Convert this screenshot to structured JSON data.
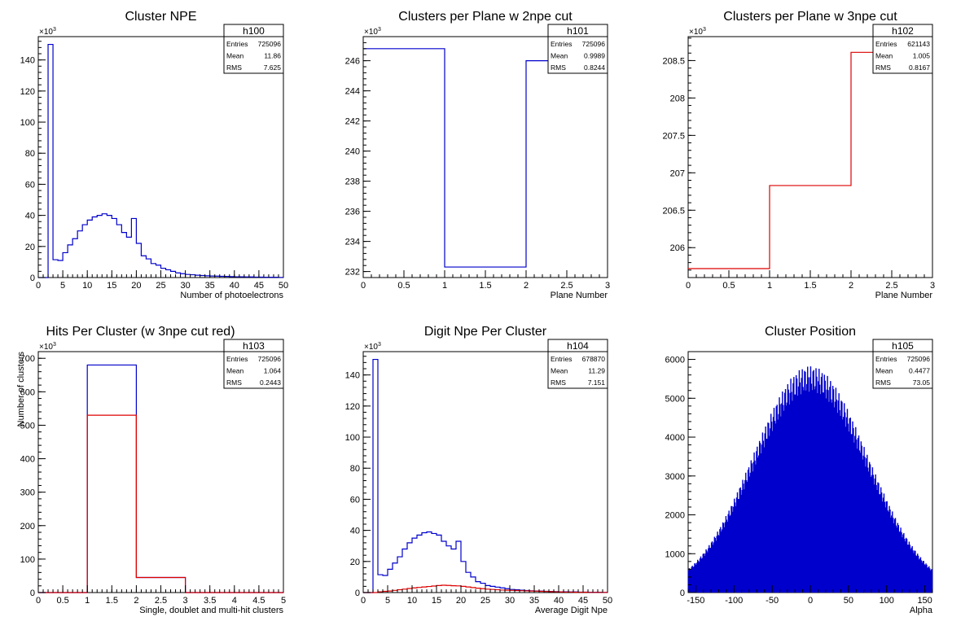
{
  "chart_data": [
    {
      "id": "h100",
      "type": "histogram",
      "title": "Cluster NPE",
      "xlabel": "Number of photoelectrons",
      "ylabel": "",
      "exponent": "10",
      "exponent_power": "3",
      "xlim": [
        0,
        50
      ],
      "ylim": [
        0,
        155
      ],
      "xticks": [
        0,
        5,
        10,
        15,
        20,
        25,
        30,
        35,
        40,
        45,
        50
      ],
      "yticks": [
        0,
        20,
        40,
        60,
        80,
        100,
        120,
        140
      ],
      "stats": {
        "name": "h100",
        "entries_label": "Entries",
        "entries": "725096",
        "mean_label": "Mean",
        "mean": "11.86",
        "rms_label": "RMS",
        "rms": "7.625"
      },
      "series": [
        {
          "color": "#0000cc",
          "bin_width": 1,
          "x_start": 0,
          "values": [
            0,
            0,
            150,
            11.5,
            11,
            16,
            21,
            25,
            30,
            34,
            37,
            39,
            40,
            41,
            40,
            38,
            34,
            29,
            26,
            38,
            22,
            14,
            12,
            9,
            8,
            6,
            5,
            4,
            3,
            2.5,
            2,
            1.8,
            1.5,
            1.3,
            1.1,
            1,
            0.9,
            0.8,
            0.7,
            0.6,
            0.5,
            0.5,
            0.4,
            0.4,
            0.3,
            0.3,
            0.2,
            0.2,
            0.2,
            0.1
          ]
        }
      ]
    },
    {
      "id": "h101",
      "type": "histogram",
      "title": "Clusters per Plane w 2npe cut",
      "xlabel": "Plane Number",
      "ylabel": "",
      "exponent": "10",
      "exponent_power": "3",
      "xlim": [
        0,
        3
      ],
      "ylim": [
        231.6,
        247.6
      ],
      "xticks": [
        0,
        0.5,
        1,
        1.5,
        2,
        2.5,
        3
      ],
      "yticks": [
        232,
        234,
        236,
        238,
        240,
        242,
        244,
        246
      ],
      "stats": {
        "name": "h101",
        "entries_label": "Entries",
        "entries": "725096",
        "mean_label": "Mean",
        "mean": "0.9989",
        "rms_label": "RMS",
        "rms": "0.8244"
      },
      "series": [
        {
          "color": "#0000cc",
          "bin_width": 1,
          "x_start": 0,
          "values": [
            246.8,
            232.3,
            246.0
          ]
        }
      ]
    },
    {
      "id": "h102",
      "type": "histogram",
      "title": "Clusters per Plane w 3npe cut",
      "xlabel": "Plane Number",
      "ylabel": "",
      "exponent": "10",
      "exponent_power": "3",
      "xlim": [
        0,
        3
      ],
      "ylim": [
        205.6,
        208.82
      ],
      "xticks": [
        0,
        0.5,
        1,
        1.5,
        2,
        2.5,
        3
      ],
      "yticks": [
        206,
        206.5,
        207,
        207.5,
        208,
        208.5
      ],
      "stats": {
        "name": "h102",
        "entries_label": "Entries",
        "entries": "621143",
        "mean_label": "Mean",
        "mean": "1.005",
        "rms_label": "RMS",
        "rms": "0.8167"
      },
      "series": [
        {
          "color": "#dd0000",
          "bin_width": 1,
          "x_start": 0,
          "values": [
            205.72,
            206.83,
            208.61
          ]
        }
      ]
    },
    {
      "id": "h103",
      "type": "histogram",
      "title": "Hits Per Cluster (w 3npe cut red)",
      "xlabel": "Single, doublet and multi-hit clusters",
      "ylabel": "Number of clusters",
      "exponent": "10",
      "exponent_power": "3",
      "xlim": [
        0,
        5
      ],
      "ylim": [
        0,
        720
      ],
      "xticks": [
        0,
        0.5,
        1,
        1.5,
        2,
        2.5,
        3,
        3.5,
        4,
        4.5,
        5
      ],
      "yticks": [
        0,
        100,
        200,
        300,
        400,
        500,
        600,
        700
      ],
      "stats": {
        "name": "h103",
        "entries_label": "Entries",
        "entries": "725096",
        "mean_label": "Mean",
        "mean": "1.064",
        "rms_label": "RMS",
        "rms": "0.2443"
      },
      "series": [
        {
          "color": "#0000cc",
          "bin_width": 1,
          "x_start": 0,
          "values": [
            0,
            680,
            45,
            0,
            0
          ]
        },
        {
          "color": "#dd0000",
          "bin_width": 1,
          "x_start": 0,
          "values": [
            0,
            530,
            45,
            0,
            0
          ]
        }
      ]
    },
    {
      "id": "h104",
      "type": "histogram",
      "title": "Digit Npe Per Cluster",
      "xlabel": "Average Digit Npe",
      "ylabel": "",
      "exponent": "10",
      "exponent_power": "3",
      "xlim": [
        0,
        50
      ],
      "ylim": [
        0,
        155
      ],
      "xticks": [
        0,
        5,
        10,
        15,
        20,
        25,
        30,
        35,
        40,
        45,
        50
      ],
      "yticks": [
        0,
        20,
        40,
        60,
        80,
        100,
        120,
        140
      ],
      "stats": {
        "name": "h104",
        "entries_label": "Entries",
        "entries": "678870",
        "mean_label": "Mean",
        "mean": "11.29",
        "rms_label": "RMS",
        "rms": "7.151"
      },
      "series": [
        {
          "color": "#0000cc",
          "bin_width": 1,
          "x_start": 0,
          "values": [
            0,
            0,
            150,
            11.5,
            11,
            15,
            19,
            23,
            28,
            32,
            35,
            37,
            38.5,
            39,
            38,
            37,
            33,
            30,
            28,
            33,
            20,
            13,
            10,
            7,
            6,
            4.5,
            4,
            3.5,
            3,
            2.5,
            2,
            1.8,
            1.5,
            1.3,
            1.1,
            1,
            0.9,
            0.8,
            0.7,
            0.6,
            0.5,
            0.5,
            0.4,
            0.4,
            0.3,
            0.3,
            0.2,
            0.2,
            0.2,
            0.1
          ]
        },
        {
          "color": "#dd0000",
          "bin_width": 1,
          "x_start": 0,
          "values": [
            0,
            0,
            0,
            0.5,
            0.8,
            1,
            1.4,
            1.8,
            2.2,
            2.6,
            3,
            3.3,
            3.6,
            3.9,
            4.2,
            4.5,
            4.7,
            4.6,
            4.4,
            4.3,
            4,
            3.6,
            3.2,
            2.8,
            2.5,
            2.2,
            2,
            1.8,
            1.6,
            1.5,
            1.4,
            1.3,
            1.2,
            1.1,
            1,
            0.9,
            0.8,
            0.7,
            0.6,
            0.5,
            0.4,
            0.3,
            0.3,
            0.2,
            0.2,
            0.2,
            0.1,
            0.1,
            0.1,
            0.1
          ]
        }
      ]
    },
    {
      "id": "h105",
      "type": "histogram",
      "title": "Cluster Position",
      "xlabel": "Alpha",
      "ylabel": "",
      "exponent": "",
      "exponent_power": "",
      "xlim": [
        -160,
        160
      ],
      "ylim": [
        0,
        6200
      ],
      "xticks": [
        -150,
        -100,
        -50,
        0,
        50,
        100,
        150
      ],
      "yticks": [
        0,
        1000,
        2000,
        3000,
        4000,
        5000,
        6000
      ],
      "stats": {
        "name": "h105",
        "entries_label": "Entries",
        "entries": "725096",
        "mean_label": "Mean",
        "mean": "0.4477",
        "rms_label": "RMS",
        "rms": "73.05"
      },
      "series": [
        {
          "color": "#0000cc",
          "type": "comb",
          "x_start": -160,
          "x_end": 160,
          "bins": 320,
          "peak": 5500,
          "sigma": 75,
          "low_fraction": 0.08,
          "modulation_period": 3,
          "stroke_width": 1.4
        }
      ]
    }
  ]
}
